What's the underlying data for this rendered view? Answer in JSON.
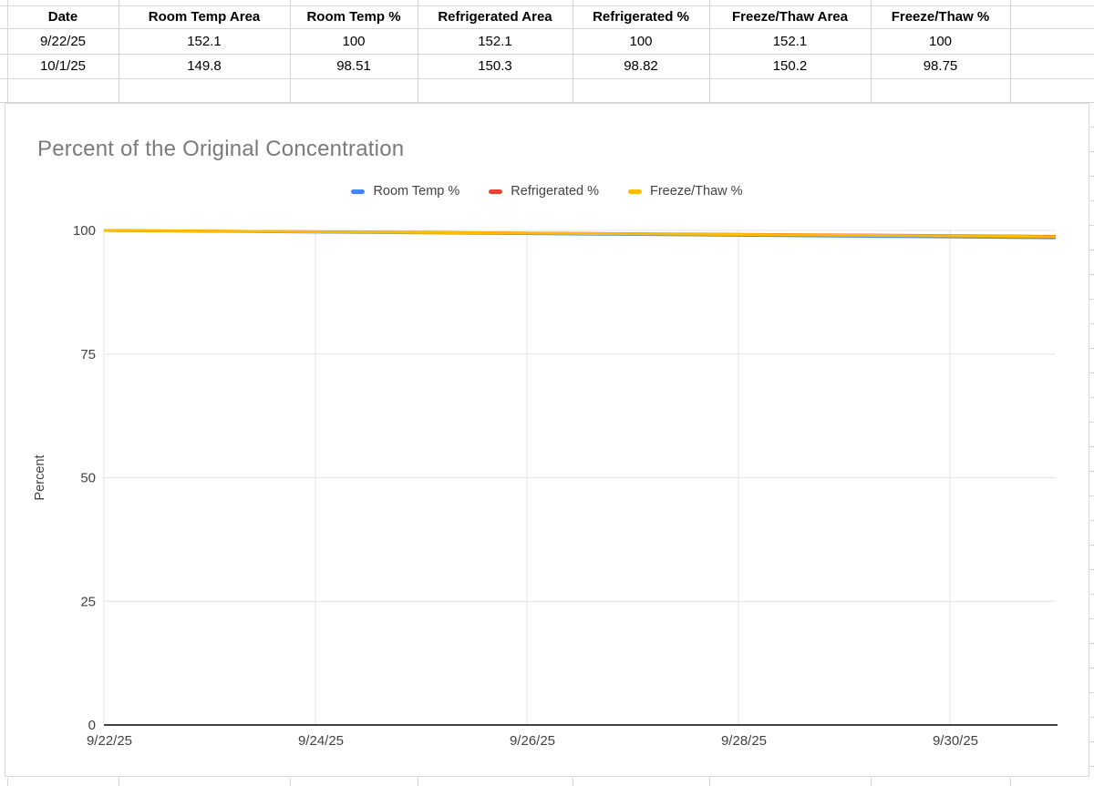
{
  "table": {
    "headers": [
      "Date",
      "Room Temp Area",
      "Room Temp %",
      "Refrigerated Area",
      "Refrigerated %",
      "Freeze/Thaw Area",
      "Freeze/Thaw %"
    ],
    "rows": [
      [
        "9/22/25",
        "152.1",
        "100",
        "152.1",
        "100",
        "152.1",
        "100"
      ],
      [
        "10/1/25",
        "149.8",
        "98.51",
        "150.3",
        "98.82",
        "150.2",
        "98.75"
      ]
    ]
  },
  "chart_data": {
    "type": "line",
    "title": "Percent of the Original Concentration",
    "xlabel": "",
    "ylabel": "Percent",
    "x": [
      "9/22/25",
      "10/1/25"
    ],
    "x_days": [
      0,
      9
    ],
    "x_range_days": [
      0,
      9
    ],
    "series": [
      {
        "name": "Room Temp %",
        "color": "#4285F4",
        "values": [
          100,
          98.51
        ]
      },
      {
        "name": "Refrigerated %",
        "color": "#EA4335",
        "values": [
          100,
          98.82
        ]
      },
      {
        "name": "Freeze/Thaw %",
        "color": "#FBBC04",
        "values": [
          100,
          98.75
        ]
      }
    ],
    "ylim": [
      0,
      100
    ],
    "yticks": [
      0,
      25,
      50,
      75,
      100
    ],
    "xticks": [
      {
        "label": "9/22/25",
        "day": 0
      },
      {
        "label": "9/24/25",
        "day": 2
      },
      {
        "label": "9/26/25",
        "day": 4
      },
      {
        "label": "9/28/25",
        "day": 6
      },
      {
        "label": "9/30/25",
        "day": 8
      }
    ],
    "grid": true,
    "legend_position": "top"
  }
}
